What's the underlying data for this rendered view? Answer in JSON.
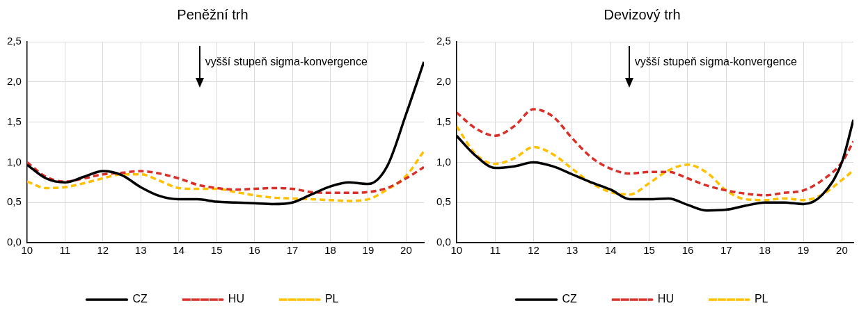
{
  "chart_data": [
    {
      "type": "line",
      "title": "Peněžní trh",
      "xlim": [
        10,
        20.47
      ],
      "xticks": [
        10,
        11,
        12,
        13,
        14,
        15,
        16,
        17,
        18,
        19,
        20
      ],
      "ylim": [
        0,
        2.5
      ],
      "yticks": [
        {
          "value": 0,
          "label": "0,0"
        },
        {
          "value": 0.5,
          "label": "0,5"
        },
        {
          "value": 1,
          "label": "1,0"
        },
        {
          "value": 1.5,
          "label": "1,5"
        },
        {
          "value": 2,
          "label": "2,0"
        },
        {
          "value": 2.5,
          "label": "2,5"
        }
      ],
      "grid": true,
      "legend": "bottom",
      "marker": "none",
      "annotations": [
        "vyšší stupeň sigma-konvergence"
      ],
      "x": [
        10,
        10.5,
        11,
        11.5,
        12,
        12.5,
        13,
        13.5,
        14,
        14.5,
        15,
        15.5,
        16,
        16.5,
        17,
        17.5,
        18,
        18.5,
        19,
        19.5,
        20,
        20.47
      ],
      "series": [
        {
          "name": "CZ",
          "color": "#000000",
          "line_style": "solid",
          "values": [
            0.97,
            0.8,
            0.75,
            0.82,
            0.89,
            0.84,
            0.69,
            0.58,
            0.54,
            0.54,
            0.51,
            0.5,
            0.49,
            0.48,
            0.5,
            0.6,
            0.7,
            0.75,
            0.73,
            0.95,
            1.6,
            2.25
          ]
        },
        {
          "name": "HU",
          "color": "#d9302a",
          "line_style": "dashed",
          "values": [
            1.0,
            0.82,
            0.76,
            0.8,
            0.85,
            0.87,
            0.89,
            0.86,
            0.8,
            0.72,
            0.68,
            0.66,
            0.67,
            0.68,
            0.67,
            0.63,
            0.62,
            0.62,
            0.63,
            0.68,
            0.8,
            0.94
          ]
        },
        {
          "name": "PL",
          "color": "#ffc000",
          "line_style": "dashed",
          "values": [
            0.76,
            0.68,
            0.69,
            0.74,
            0.8,
            0.85,
            0.85,
            0.77,
            0.68,
            0.67,
            0.67,
            0.63,
            0.59,
            0.56,
            0.55,
            0.54,
            0.53,
            0.52,
            0.54,
            0.66,
            0.83,
            1.14
          ]
        }
      ]
    },
    {
      "type": "line",
      "title": "Devizový trh",
      "xlim": [
        10,
        20.3
      ],
      "xticks": [
        10,
        11,
        12,
        13,
        14,
        15,
        16,
        17,
        18,
        19,
        20
      ],
      "ylim": [
        0,
        2.5
      ],
      "yticks": [
        {
          "value": 0,
          "label": "0,0"
        },
        {
          "value": 0.5,
          "label": "0,5"
        },
        {
          "value": 1,
          "label": "1,0"
        },
        {
          "value": 1.5,
          "label": "1,5"
        },
        {
          "value": 2,
          "label": "2,0"
        },
        {
          "value": 2.5,
          "label": "2,5"
        }
      ],
      "grid": true,
      "legend": "bottom",
      "marker": "none",
      "annotations": [
        "vyšší stupeň sigma-konvergence"
      ],
      "x": [
        10,
        10.5,
        11,
        11.5,
        12,
        12.5,
        13,
        13.5,
        14,
        14.5,
        15,
        15.5,
        16,
        16.5,
        17,
        17.5,
        18,
        18.5,
        19,
        19.5,
        20,
        20.3
      ],
      "series": [
        {
          "name": "CZ",
          "color": "#000000",
          "line_style": "solid",
          "values": [
            1.33,
            1.08,
            0.93,
            0.95,
            1.0,
            0.95,
            0.85,
            0.75,
            0.66,
            0.54,
            0.54,
            0.55,
            0.47,
            0.4,
            0.41,
            0.46,
            0.5,
            0.5,
            0.48,
            0.6,
            1.0,
            1.53
          ]
        },
        {
          "name": "HU",
          "color": "#d9302a",
          "line_style": "dashed",
          "values": [
            1.62,
            1.42,
            1.33,
            1.45,
            1.66,
            1.57,
            1.3,
            1.06,
            0.92,
            0.86,
            0.88,
            0.88,
            0.8,
            0.71,
            0.65,
            0.61,
            0.59,
            0.62,
            0.65,
            0.78,
            1.0,
            1.26
          ]
        },
        {
          "name": "PL",
          "color": "#ffc000",
          "line_style": "dashed",
          "values": [
            1.45,
            1.1,
            0.98,
            1.05,
            1.19,
            1.1,
            0.92,
            0.74,
            0.63,
            0.6,
            0.74,
            0.9,
            0.97,
            0.87,
            0.65,
            0.54,
            0.53,
            0.55,
            0.53,
            0.6,
            0.78,
            0.9
          ]
        }
      ]
    }
  ]
}
